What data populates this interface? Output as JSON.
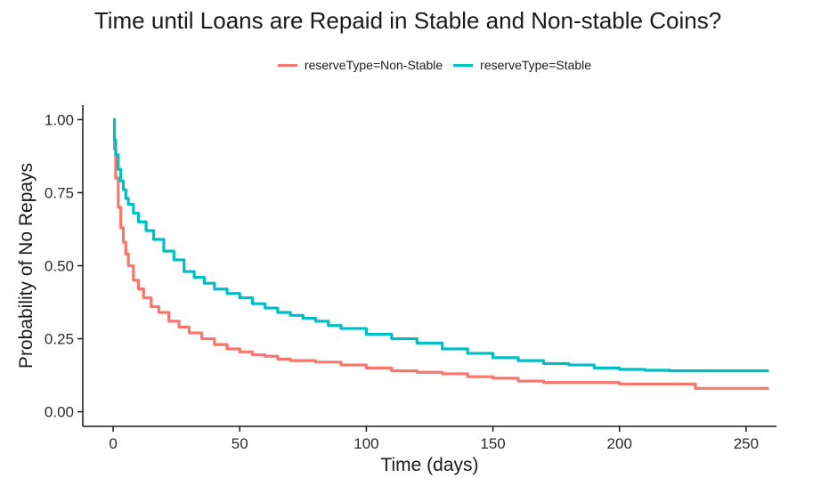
{
  "chart_data": {
    "type": "line",
    "title": "Time until Loans are Repaid in Stable and Non-stable Coins?",
    "xlabel": "Time (days)",
    "ylabel": "Probability of No Repays",
    "xlim": [
      -12,
      262
    ],
    "ylim": [
      -0.05,
      1.05
    ],
    "x_ticks": [
      0,
      50,
      100,
      150,
      200,
      250
    ],
    "x_tick_labels": [
      "0",
      "50",
      "100",
      "150",
      "200",
      "250"
    ],
    "y_ticks": [
      0,
      0.25,
      0.5,
      0.75,
      1.0
    ],
    "y_tick_labels": [
      "0.00",
      "0.25",
      "0.50",
      "0.75",
      "1.00"
    ],
    "grid": false,
    "legend_position": "top",
    "series": [
      {
        "name": "reserveType=Non-Stable",
        "color": "#f8766d",
        "step": true,
        "points": [
          [
            0,
            1.0
          ],
          [
            0.5,
            0.9
          ],
          [
            1,
            0.8
          ],
          [
            2,
            0.7
          ],
          [
            3,
            0.63
          ],
          [
            4,
            0.58
          ],
          [
            5,
            0.54
          ],
          [
            6,
            0.5
          ],
          [
            8,
            0.45
          ],
          [
            10,
            0.42
          ],
          [
            12,
            0.39
          ],
          [
            15,
            0.36
          ],
          [
            18,
            0.34
          ],
          [
            22,
            0.31
          ],
          [
            26,
            0.29
          ],
          [
            30,
            0.27
          ],
          [
            35,
            0.25
          ],
          [
            40,
            0.23
          ],
          [
            45,
            0.215
          ],
          [
            50,
            0.205
          ],
          [
            55,
            0.195
          ],
          [
            60,
            0.19
          ],
          [
            65,
            0.18
          ],
          [
            70,
            0.175
          ],
          [
            80,
            0.17
          ],
          [
            90,
            0.16
          ],
          [
            100,
            0.15
          ],
          [
            110,
            0.14
          ],
          [
            120,
            0.135
          ],
          [
            130,
            0.13
          ],
          [
            140,
            0.12
          ],
          [
            150,
            0.115
          ],
          [
            160,
            0.105
          ],
          [
            170,
            0.1
          ],
          [
            180,
            0.1
          ],
          [
            190,
            0.1
          ],
          [
            200,
            0.095
          ],
          [
            210,
            0.095
          ],
          [
            220,
            0.095
          ],
          [
            229,
            0.095
          ],
          [
            230,
            0.08
          ],
          [
            245,
            0.08
          ],
          [
            259,
            0.08
          ]
        ]
      },
      {
        "name": "reserveType=Stable",
        "color": "#00bfc4",
        "step": true,
        "points": [
          [
            0,
            1.0
          ],
          [
            0.5,
            0.93
          ],
          [
            1,
            0.88
          ],
          [
            2,
            0.83
          ],
          [
            3,
            0.79
          ],
          [
            4,
            0.76
          ],
          [
            5,
            0.73
          ],
          [
            6,
            0.71
          ],
          [
            8,
            0.68
          ],
          [
            10,
            0.65
          ],
          [
            13,
            0.62
          ],
          [
            16,
            0.59
          ],
          [
            20,
            0.55
          ],
          [
            24,
            0.52
          ],
          [
            28,
            0.48
          ],
          [
            32,
            0.46
          ],
          [
            36,
            0.44
          ],
          [
            40,
            0.42
          ],
          [
            45,
            0.405
          ],
          [
            50,
            0.39
          ],
          [
            55,
            0.37
          ],
          [
            60,
            0.355
          ],
          [
            65,
            0.34
          ],
          [
            70,
            0.33
          ],
          [
            75,
            0.32
          ],
          [
            80,
            0.31
          ],
          [
            85,
            0.295
          ],
          [
            90,
            0.285
          ],
          [
            100,
            0.265
          ],
          [
            110,
            0.25
          ],
          [
            120,
            0.235
          ],
          [
            130,
            0.215
          ],
          [
            140,
            0.2
          ],
          [
            150,
            0.185
          ],
          [
            160,
            0.175
          ],
          [
            170,
            0.165
          ],
          [
            180,
            0.16
          ],
          [
            190,
            0.15
          ],
          [
            200,
            0.145
          ],
          [
            210,
            0.142
          ],
          [
            220,
            0.14
          ],
          [
            230,
            0.14
          ],
          [
            240,
            0.14
          ],
          [
            259,
            0.14
          ]
        ]
      }
    ]
  }
}
